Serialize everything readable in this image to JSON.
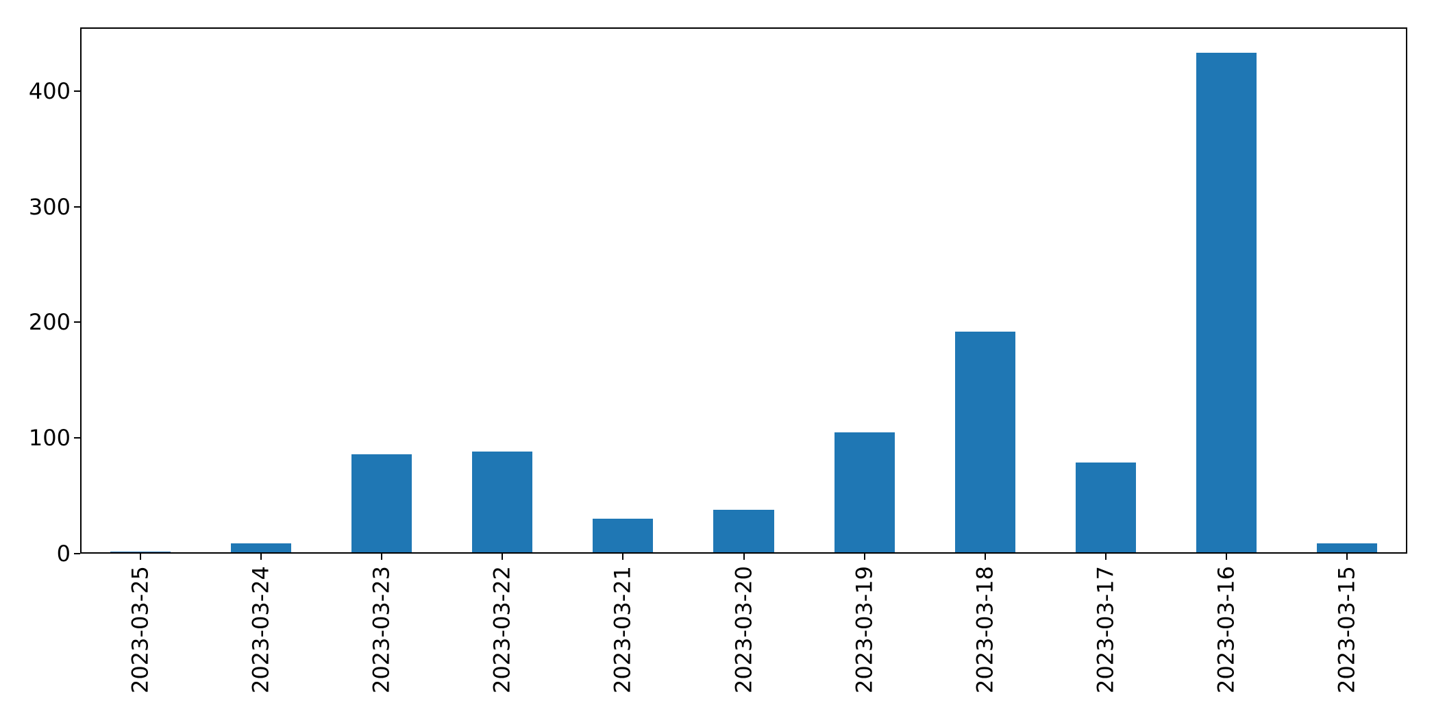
{
  "figure": {
    "background_color": "#ffffff",
    "bar_color": "#1f77b4",
    "spine_color": "#000000",
    "tick_label_color": "#000000"
  },
  "chart_data": {
    "type": "bar",
    "title": "",
    "xlabel": "",
    "ylabel": "",
    "categories": [
      "2023-03-25",
      "2023-03-24",
      "2023-03-23",
      "2023-03-22",
      "2023-03-21",
      "2023-03-20",
      "2023-03-19",
      "2023-03-18",
      "2023-03-17",
      "2023-03-16",
      "2023-03-15"
    ],
    "values": [
      2,
      9,
      86,
      88,
      30,
      38,
      105,
      192,
      79,
      433,
      9
    ],
    "yticks": [
      0,
      100,
      200,
      300,
      400
    ],
    "ylim": [
      0,
      455
    ],
    "bar_relative_width": 0.5,
    "x_tick_rotation_deg": 90,
    "grid": false,
    "legend_position": "none"
  }
}
